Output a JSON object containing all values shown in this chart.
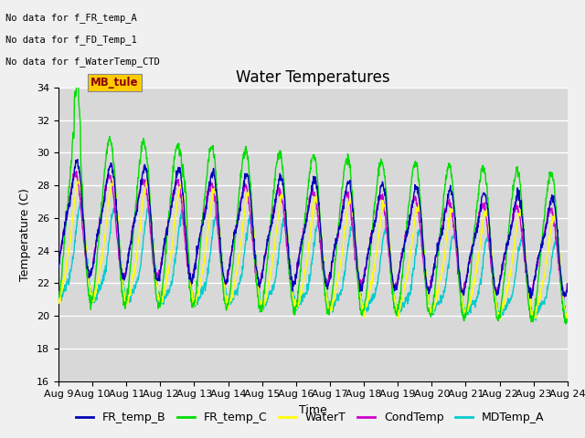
{
  "title": "Water Temperatures",
  "xlabel": "Time",
  "ylabel": "Temperature (C)",
  "ylim": [
    16,
    34
  ],
  "yticks": [
    16,
    18,
    20,
    22,
    24,
    26,
    28,
    30,
    32,
    34
  ],
  "x_tick_labels": [
    "Aug 9",
    "Aug 10",
    "Aug 11",
    "Aug 12",
    "Aug 13",
    "Aug 14",
    "Aug 15",
    "Aug 16",
    "Aug 17",
    "Aug 18",
    "Aug 19",
    "Aug 20",
    "Aug 21",
    "Aug 22",
    "Aug 23",
    "Aug 24"
  ],
  "colors": {
    "FR_temp_B": "#0000bb",
    "FR_temp_C": "#00dd00",
    "WaterT": "#ffff00",
    "CondTemp": "#cc00cc",
    "MDTemp_A": "#00cccc"
  },
  "annotations": [
    "No data for f_FR_temp_A",
    "No data for f_FD_Temp_1",
    "No data for f_WaterTemp_CTD"
  ],
  "mb_tule_label": "MB_tule",
  "background_color": "#d8d8d8",
  "fig_facecolor": "#f0f0f0",
  "grid_color": "#ffffff",
  "title_fontsize": 12,
  "axis_fontsize": 9,
  "tick_fontsize": 8,
  "legend_fontsize": 9
}
